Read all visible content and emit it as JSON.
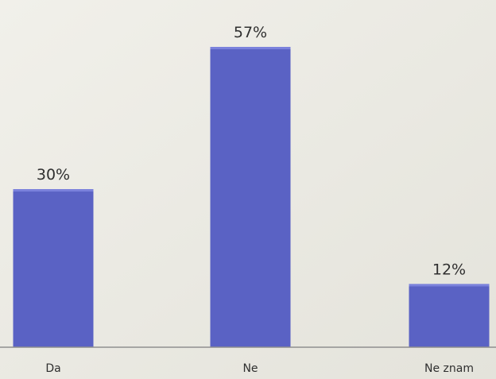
{
  "chart_data": {
    "type": "bar",
    "categories": [
      "Da",
      "Ne",
      "Ne znam"
    ],
    "values": [
      30,
      57,
      12
    ],
    "value_labels": [
      "30%",
      "57%",
      "12%"
    ],
    "ylim": [
      0,
      60
    ],
    "grid": false,
    "legend": "none"
  },
  "colors": {
    "bar_fill": "#5a62c4",
    "bar_top": "#7b82dc",
    "text": "#2f2f2f",
    "axis": "#8f8f8f",
    "background": "#ecebe4"
  }
}
